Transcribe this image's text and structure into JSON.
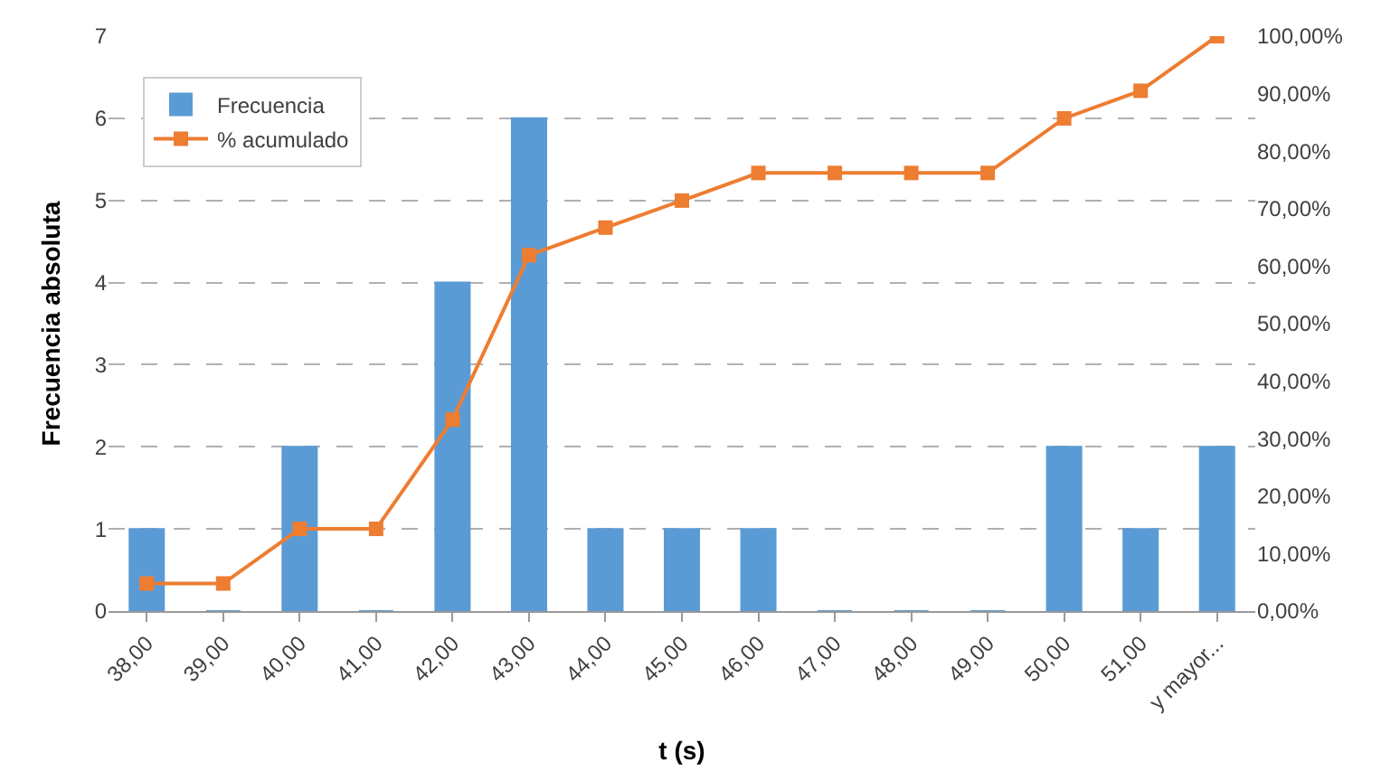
{
  "chart_data": {
    "type": "bar",
    "xlabel": "t (s)",
    "ylabel": "Frecuencia absoluta",
    "categories": [
      "38,00",
      "39,00",
      "40,00",
      "41,00",
      "42,00",
      "43,00",
      "44,00",
      "45,00",
      "46,00",
      "47,00",
      "48,00",
      "49,00",
      "50,00",
      "51,00",
      "y mayor..."
    ],
    "series": [
      {
        "name": "Frecuencia",
        "color": "#5b9bd5",
        "values": [
          1,
          0,
          2,
          0,
          4,
          6,
          1,
          1,
          1,
          0,
          0,
          0,
          2,
          1,
          2
        ]
      },
      {
        "name": "% acumulado",
        "type": "line",
        "axis": "y2",
        "color": "#ed7d31",
        "marker": "square",
        "values": [
          4.8,
          4.8,
          14.3,
          14.3,
          33.3,
          61.9,
          66.7,
          71.4,
          76.2,
          76.2,
          76.2,
          76.2,
          85.7,
          90.5,
          100
        ]
      }
    ],
    "ylim": [
      0,
      7
    ],
    "yticks": [
      0,
      1,
      2,
      3,
      4,
      5,
      6,
      7
    ],
    "y2lim": [
      0,
      100
    ],
    "y2ticks": [
      {
        "value": 0,
        "label": "0,00%"
      },
      {
        "value": 10,
        "label": "10,00%"
      },
      {
        "value": 20,
        "label": "20,00%"
      },
      {
        "value": 30,
        "label": "30,00%"
      },
      {
        "value": 40,
        "label": "40,00%"
      },
      {
        "value": 50,
        "label": "50,00%"
      },
      {
        "value": 60,
        "label": "60,00%"
      },
      {
        "value": 70,
        "label": "70,00%"
      },
      {
        "value": 80,
        "label": "80,00%"
      },
      {
        "value": 90,
        "label": "90,00%"
      },
      {
        "value": 100,
        "label": "100,00%"
      }
    ],
    "grid": "y",
    "legend": "top left"
  }
}
